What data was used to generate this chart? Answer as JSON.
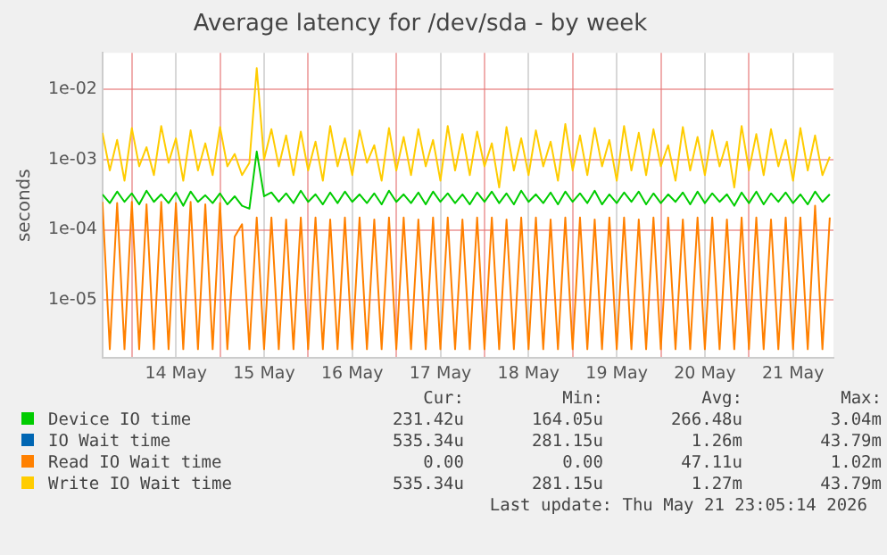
{
  "chart_data": {
    "type": "line",
    "title": "Average latency for /dev/sda - by week",
    "ylabel": "seconds",
    "log": "y",
    "grid": true,
    "legend": "bottom",
    "marker": "none",
    "line_style": "solid",
    "ylim": [
      1.5e-06,
      0.033
    ],
    "yticks": [
      {
        "value": 1e-05,
        "label": "1e-05"
      },
      {
        "value": 0.0001,
        "label": "1e-04"
      },
      {
        "value": 0.001,
        "label": "1e-03"
      },
      {
        "value": 0.01,
        "label": "1e-02"
      }
    ],
    "xlim": [
      "2026-05-13T16:00",
      "2026-05-21T23:00"
    ],
    "xticks": [
      {
        "value": "2026-05-14T00:00",
        "label": null
      },
      {
        "value": "2026-05-14T12:00",
        "label": "14 May"
      },
      {
        "value": "2026-05-15T00:00",
        "label": null
      },
      {
        "value": "2026-05-15T12:00",
        "label": "15 May"
      },
      {
        "value": "2026-05-16T00:00",
        "label": null
      },
      {
        "value": "2026-05-16T12:00",
        "label": "16 May"
      },
      {
        "value": "2026-05-17T00:00",
        "label": null
      },
      {
        "value": "2026-05-17T12:00",
        "label": "17 May"
      },
      {
        "value": "2026-05-18T00:00",
        "label": null
      },
      {
        "value": "2026-05-18T12:00",
        "label": "18 May"
      },
      {
        "value": "2026-05-19T00:00",
        "label": null
      },
      {
        "value": "2026-05-19T12:00",
        "label": "19 May"
      },
      {
        "value": "2026-05-20T00:00",
        "label": null
      },
      {
        "value": "2026-05-20T12:00",
        "label": "20 May"
      },
      {
        "value": "2026-05-21T00:00",
        "label": null
      },
      {
        "value": "2026-05-21T12:00",
        "label": "21 May"
      }
    ],
    "x": [
      "2026-05-13T16:00",
      "2026-05-13T18:00",
      "2026-05-13T20:00",
      "2026-05-13T22:00",
      "2026-05-14T00:00",
      "2026-05-14T02:00",
      "2026-05-14T04:00",
      "2026-05-14T06:00",
      "2026-05-14T08:00",
      "2026-05-14T10:00",
      "2026-05-14T12:00",
      "2026-05-14T14:00",
      "2026-05-14T16:00",
      "2026-05-14T18:00",
      "2026-05-14T20:00",
      "2026-05-14T22:00",
      "2026-05-15T00:00",
      "2026-05-15T02:00",
      "2026-05-15T04:00",
      "2026-05-15T06:00",
      "2026-05-15T08:00",
      "2026-05-15T10:00",
      "2026-05-15T12:00",
      "2026-05-15T14:00",
      "2026-05-15T16:00",
      "2026-05-15T18:00",
      "2026-05-15T20:00",
      "2026-05-15T22:00",
      "2026-05-16T00:00",
      "2026-05-16T02:00",
      "2026-05-16T04:00",
      "2026-05-16T06:00",
      "2026-05-16T08:00",
      "2026-05-16T10:00",
      "2026-05-16T12:00",
      "2026-05-16T14:00",
      "2026-05-16T16:00",
      "2026-05-16T18:00",
      "2026-05-16T20:00",
      "2026-05-16T22:00",
      "2026-05-17T00:00",
      "2026-05-17T02:00",
      "2026-05-17T04:00",
      "2026-05-17T06:00",
      "2026-05-17T08:00",
      "2026-05-17T10:00",
      "2026-05-17T12:00",
      "2026-05-17T14:00",
      "2026-05-17T16:00",
      "2026-05-17T18:00",
      "2026-05-17T20:00",
      "2026-05-17T22:00",
      "2026-05-18T00:00",
      "2026-05-18T02:00",
      "2026-05-18T04:00",
      "2026-05-18T06:00",
      "2026-05-18T08:00",
      "2026-05-18T10:00",
      "2026-05-18T12:00",
      "2026-05-18T14:00",
      "2026-05-18T16:00",
      "2026-05-18T18:00",
      "2026-05-18T20:00",
      "2026-05-18T22:00",
      "2026-05-19T00:00",
      "2026-05-19T02:00",
      "2026-05-19T04:00",
      "2026-05-19T06:00",
      "2026-05-19T08:00",
      "2026-05-19T10:00",
      "2026-05-19T12:00",
      "2026-05-19T14:00",
      "2026-05-19T16:00",
      "2026-05-19T18:00",
      "2026-05-19T20:00",
      "2026-05-19T22:00",
      "2026-05-20T00:00",
      "2026-05-20T02:00",
      "2026-05-20T04:00",
      "2026-05-20T06:00",
      "2026-05-20T08:00",
      "2026-05-20T10:00",
      "2026-05-20T12:00",
      "2026-05-20T14:00",
      "2026-05-20T16:00",
      "2026-05-20T18:00",
      "2026-05-20T20:00",
      "2026-05-20T22:00",
      "2026-05-21T00:00",
      "2026-05-21T02:00",
      "2026-05-21T04:00",
      "2026-05-21T06:00",
      "2026-05-21T08:00",
      "2026-05-21T10:00",
      "2026-05-21T12:00",
      "2026-05-21T14:00",
      "2026-05-21T16:00",
      "2026-05-21T18:00",
      "2026-05-21T20:00",
      "2026-05-21T22:00"
    ],
    "series": [
      {
        "name": "Device IO time",
        "color": "#00cc00",
        "values": [
          0.00032,
          0.00024,
          0.00035,
          0.00025,
          0.00033,
          0.00023,
          0.00036,
          0.00025,
          0.00032,
          0.00024,
          0.00034,
          0.00022,
          0.00035,
          0.00025,
          0.00031,
          0.00024,
          0.00033,
          0.00023,
          0.0003,
          0.00022,
          0.0002,
          0.0013,
          0.0003,
          0.00034,
          0.00025,
          0.00033,
          0.00024,
          0.00036,
          0.00025,
          0.00032,
          0.00023,
          0.00034,
          0.00024,
          0.00035,
          0.00025,
          0.00032,
          0.00024,
          0.00033,
          0.00023,
          0.00036,
          0.00025,
          0.00032,
          0.00024,
          0.00034,
          0.00023,
          0.00035,
          0.00025,
          0.00033,
          0.00024,
          0.00032,
          0.00023,
          0.00034,
          0.00025,
          0.00035,
          0.00024,
          0.00033,
          0.00023,
          0.00036,
          0.00025,
          0.00032,
          0.00024,
          0.00034,
          0.00023,
          0.00035,
          0.00025,
          0.00033,
          0.00024,
          0.00036,
          0.00023,
          0.00032,
          0.00024,
          0.00034,
          0.00025,
          0.00035,
          0.00023,
          0.00033,
          0.00024,
          0.00032,
          0.00025,
          0.00034,
          0.00023,
          0.00035,
          0.00024,
          0.00033,
          0.00025,
          0.00032,
          0.00022,
          0.00034,
          0.00024,
          0.00035,
          0.00023,
          0.00033,
          0.00025,
          0.00034,
          0.00024,
          0.00032,
          0.00023,
          0.00035,
          0.00025,
          0.00032
        ]
      },
      {
        "name": "IO Wait time",
        "color": "#0066b3",
        "values": [
          null,
          null,
          null,
          null,
          null,
          null,
          null,
          null,
          null,
          null,
          null,
          null,
          null,
          null,
          null,
          null,
          null,
          null,
          null,
          null,
          null,
          null,
          null,
          null,
          null,
          null,
          null,
          null,
          null,
          null,
          null,
          null,
          null,
          null,
          null,
          null,
          null,
          null,
          null,
          null,
          null,
          null,
          null,
          null,
          null,
          null,
          null,
          null,
          null,
          null,
          null,
          null,
          null,
          null,
          null,
          null,
          null,
          null,
          null,
          null,
          null,
          null,
          null,
          null,
          null,
          null,
          null,
          null,
          null,
          null,
          null,
          null,
          null,
          null,
          null,
          null,
          null,
          null,
          null,
          null,
          null,
          null,
          null,
          null,
          null,
          null,
          null,
          null,
          null,
          null,
          null,
          null,
          null,
          null,
          null,
          null,
          null,
          null,
          null,
          null
        ]
      },
      {
        "name": "Read IO Wait time",
        "color": "#ff8000",
        "values": [
          0.00025,
          2e-06,
          0.00024,
          2e-06,
          0.00025,
          2e-06,
          0.00023,
          2e-06,
          0.00025,
          2e-06,
          0.00024,
          2e-06,
          0.00025,
          2e-06,
          0.00023,
          2e-06,
          0.00024,
          2e-06,
          8e-05,
          0.00012,
          2e-06,
          0.00015,
          2e-06,
          0.00015,
          2e-06,
          0.00014,
          2e-06,
          0.00015,
          2e-06,
          0.00015,
          2e-06,
          0.00014,
          2e-06,
          0.00015,
          2e-06,
          0.00015,
          2e-06,
          0.00014,
          2e-06,
          0.00015,
          2e-06,
          0.00015,
          2e-06,
          0.00014,
          2e-06,
          0.00015,
          2e-06,
          0.00015,
          2e-06,
          0.00014,
          2e-06,
          0.00015,
          2e-06,
          0.00015,
          2e-06,
          0.00014,
          2e-06,
          0.00015,
          2e-06,
          0.00015,
          2e-06,
          0.00014,
          2e-06,
          0.00015,
          2e-06,
          0.00015,
          2e-06,
          0.00014,
          2e-06,
          0.00015,
          2e-06,
          0.00015,
          2e-06,
          0.00014,
          2e-06,
          0.00015,
          2e-06,
          0.00015,
          2e-06,
          0.00014,
          2e-06,
          0.00015,
          2e-06,
          0.00015,
          2e-06,
          0.00014,
          2e-06,
          0.00015,
          2e-06,
          0.00015,
          2e-06,
          0.00014,
          2e-06,
          0.00015,
          2e-06,
          0.00015,
          2e-06,
          0.00022,
          2e-06,
          0.00015
        ]
      },
      {
        "name": "Write IO Wait time",
        "color": "#ffcc00",
        "values": [
          0.0024,
          0.0007,
          0.0019,
          0.0005,
          0.0028,
          0.0008,
          0.0015,
          0.0006,
          0.003,
          0.0009,
          0.002,
          0.0005,
          0.0026,
          0.0007,
          0.0017,
          0.0006,
          0.0029,
          0.0008,
          0.0012,
          0.0006,
          0.0009,
          0.02,
          0.001,
          0.0027,
          0.0008,
          0.0022,
          0.0006,
          0.0025,
          0.0007,
          0.0018,
          0.0005,
          0.003,
          0.0008,
          0.002,
          0.0006,
          0.0026,
          0.0009,
          0.0016,
          0.0005,
          0.0028,
          0.0007,
          0.0021,
          0.0006,
          0.0027,
          0.0008,
          0.0019,
          0.0005,
          0.003,
          0.0007,
          0.0023,
          0.0006,
          0.0025,
          0.0008,
          0.0017,
          0.0004,
          0.0029,
          0.0007,
          0.002,
          0.0006,
          0.0026,
          0.0008,
          0.0018,
          0.0005,
          0.0032,
          0.0007,
          0.0022,
          0.0006,
          0.0028,
          0.0008,
          0.0019,
          0.0005,
          0.003,
          0.0007,
          0.0024,
          0.0006,
          0.0027,
          0.0008,
          0.0016,
          0.0005,
          0.0029,
          0.0007,
          0.0021,
          0.0006,
          0.0026,
          0.0008,
          0.0018,
          0.0004,
          0.003,
          0.0007,
          0.0023,
          0.0006,
          0.0027,
          0.0008,
          0.0019,
          0.0005,
          0.0028,
          0.0007,
          0.0022,
          0.0006,
          0.0011
        ]
      }
    ],
    "annotations": [
      "Cur:",
      "Min:",
      "Avg:",
      "Max:",
      "231.42u",
      "164.05u",
      "266.48u",
      "3.04m",
      "535.34u",
      "281.15u",
      "1.26m",
      "43.79m",
      "0.00",
      "0.00",
      "47.11u",
      "1.02m",
      "535.34u",
      "281.15u",
      "1.27m",
      "43.79m",
      "Last update: Thu May 21 23:05:14 2026"
    ]
  }
}
